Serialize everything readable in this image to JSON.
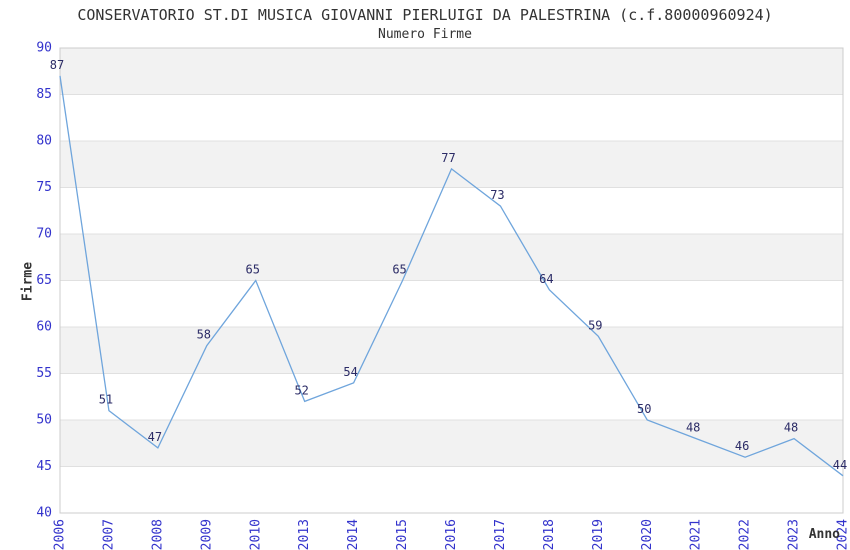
{
  "header": {
    "title": "CONSERVATORIO ST.DI MUSICA GIOVANNI PIERLUIGI DA PALESTRINA (c.f.80000960924)",
    "subtitle": "Numero Firme"
  },
  "chart_data": {
    "type": "line",
    "title": "CONSERVATORIO ST.DI MUSICA GIOVANNI PIERLUIGI DA PALESTRINA (c.f.80000960924)",
    "subtitle": "Numero Firme",
    "xlabel": "Anno",
    "ylabel": "Firme",
    "categories": [
      "2006",
      "2007",
      "2008",
      "2009",
      "2010",
      "2013",
      "2014",
      "2015",
      "2016",
      "2017",
      "2018",
      "2019",
      "2020",
      "2021",
      "2022",
      "2023",
      "2024"
    ],
    "values": [
      87,
      51,
      47,
      58,
      65,
      52,
      54,
      65,
      77,
      73,
      64,
      59,
      50,
      48,
      46,
      48,
      44
    ],
    "ylim": [
      40,
      90
    ],
    "ytick_step": 5,
    "grid": "horizontal",
    "background_bands": true,
    "legend_position": "none",
    "x_tick_rotation": -90,
    "data_labels_shown": true,
    "colors": {
      "line": "#6FA5DC",
      "tick_label": "#3333CC",
      "data_label": "#2B2B66",
      "band": "#F2F2F2",
      "gridline": "#E0E0E0",
      "border": "#CCCCCC",
      "title": "#333333",
      "axis_title": "#333333"
    }
  }
}
